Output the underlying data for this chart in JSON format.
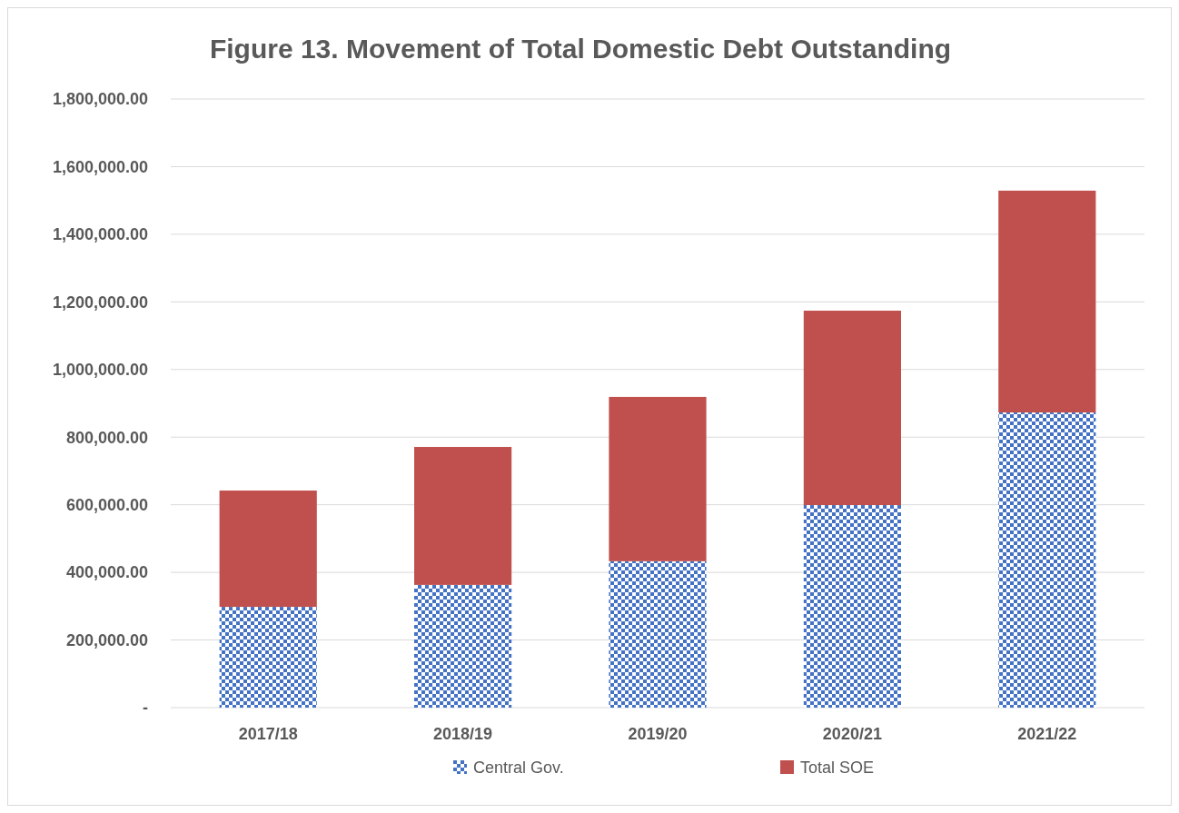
{
  "chart_data": {
    "type": "bar",
    "title": "Figure 13. Movement of Total Domestic Debt Outstanding",
    "categories": [
      "2017/18",
      "2018/19",
      "2019/20",
      "2020/21",
      "2021/22"
    ],
    "stacked": true,
    "series": [
      {
        "name": "Central Gov.",
        "color": "#4472c4",
        "values": [
          298000,
          363000,
          433000,
          599000,
          873000
        ]
      },
      {
        "name": "Total SOE",
        "color": "#c0504d",
        "values": [
          344000,
          408000,
          486000,
          575000,
          656000
        ]
      }
    ],
    "ylim": [
      0,
      1800000
    ],
    "yticks": [
      {
        "value": 0,
        "label": "-"
      },
      {
        "value": 200000,
        "label": "200,000.00"
      },
      {
        "value": 400000,
        "label": "400,000.00"
      },
      {
        "value": 600000,
        "label": "600,000.00"
      },
      {
        "value": 800000,
        "label": "800,000.00"
      },
      {
        "value": 1000000,
        "label": "1,000,000.00"
      },
      {
        "value": 1200000,
        "label": "1,200,000.00"
      },
      {
        "value": 1400000,
        "label": "1,400,000.00"
      },
      {
        "value": 1600000,
        "label": "1,600,000.00"
      },
      {
        "value": 1800000,
        "label": "1,800,000.00"
      }
    ],
    "grid": "y",
    "legend": "bottom"
  }
}
